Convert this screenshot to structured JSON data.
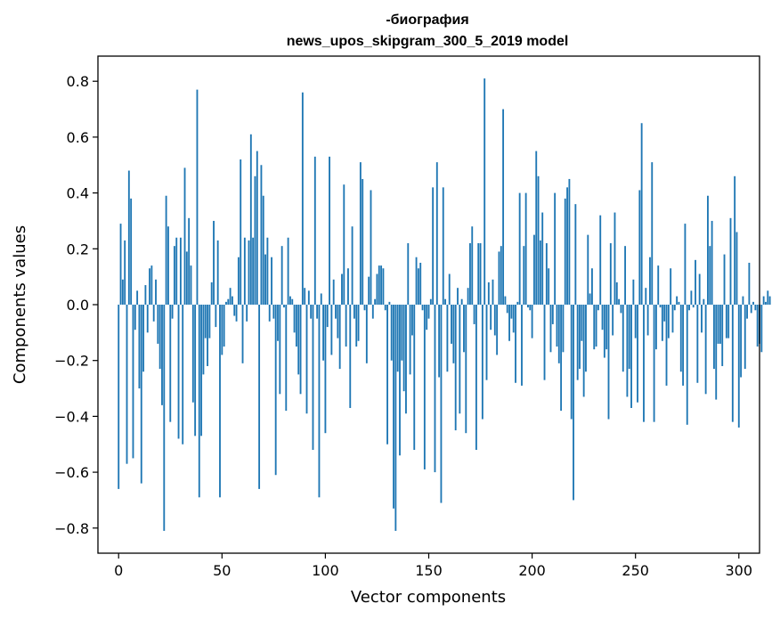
{
  "chart_data": {
    "type": "bar",
    "title_line1": "-биография",
    "title_line2": "news_upos_skipgram_300_5_2019 model",
    "xlabel": "Vector components",
    "ylabel": "Components values",
    "xlim": [
      -10,
      310
    ],
    "ylim": [
      -0.89,
      0.89
    ],
    "xticks": [
      0,
      50,
      100,
      150,
      200,
      250,
      300
    ],
    "xtick_labels": [
      "0",
      "50",
      "100",
      "150",
      "200",
      "250",
      "300"
    ],
    "yticks": [
      -0.8,
      -0.6,
      -0.4,
      -0.2,
      0.0,
      0.2,
      0.4,
      0.6,
      0.8
    ],
    "ytick_labels": [
      "−0.8",
      "−0.6",
      "−0.4",
      "−0.2",
      "0.0",
      "0.2",
      "0.4",
      "0.6",
      "0.8"
    ],
    "bar_color": "#1f77b4",
    "values": [
      -0.66,
      0.29,
      0.09,
      0.23,
      -0.57,
      0.48,
      0.38,
      -0.55,
      -0.09,
      0.05,
      -0.3,
      -0.64,
      -0.24,
      0.07,
      -0.1,
      0.13,
      0.14,
      -0.06,
      0.09,
      -0.14,
      -0.23,
      -0.36,
      -0.81,
      0.39,
      0.28,
      -0.42,
      -0.05,
      0.21,
      0.24,
      -0.48,
      0.24,
      -0.5,
      0.49,
      0.19,
      0.31,
      0.14,
      -0.35,
      -0.47,
      0.77,
      -0.69,
      -0.47,
      -0.25,
      -0.12,
      -0.22,
      -0.12,
      0.08,
      0.3,
      -0.08,
      0.23,
      -0.69,
      -0.18,
      -0.15,
      0.01,
      0.02,
      0.06,
      0.03,
      -0.04,
      -0.06,
      0.17,
      0.52,
      -0.21,
      0.24,
      -0.06,
      0.23,
      0.61,
      0.24,
      0.46,
      0.55,
      -0.66,
      0.5,
      0.39,
      0.18,
      0.24,
      -0.06,
      0.17,
      -0.05,
      -0.61,
      -0.13,
      -0.32,
      0.21,
      -0.01,
      -0.38,
      0.24,
      0.03,
      0.02,
      -0.1,
      -0.15,
      -0.25,
      -0.32,
      0.76,
      0.06,
      -0.39,
      0.05,
      -0.05,
      -0.52,
      0.53,
      -0.05,
      -0.69,
      0.04,
      -0.2,
      -0.46,
      -0.08,
      0.53,
      -0.18,
      0.09,
      -0.05,
      -0.12,
      -0.23,
      0.11,
      0.43,
      -0.15,
      0.13,
      -0.37,
      0.28,
      -0.05,
      -0.15,
      -0.13,
      0.51,
      0.45,
      -0.02,
      -0.21,
      0.1,
      0.41,
      -0.05,
      0.02,
      0.11,
      0.14,
      0.14,
      0.13,
      -0.02,
      -0.5,
      0.01,
      -0.2,
      -0.73,
      -0.81,
      -0.24,
      -0.54,
      -0.2,
      -0.31,
      -0.39,
      0.22,
      -0.25,
      -0.11,
      -0.52,
      0.17,
      0.13,
      0.15,
      -0.02,
      -0.59,
      -0.09,
      -0.05,
      0.02,
      0.42,
      -0.6,
      0.51,
      -0.26,
      -0.71,
      0.42,
      0.02,
      -0.24,
      0.11,
      -0.14,
      -0.21,
      -0.45,
      0.06,
      -0.39,
      0.02,
      -0.17,
      -0.46,
      0.06,
      0.22,
      0.28,
      -0.07,
      -0.52,
      0.22,
      0.22,
      -0.41,
      0.81,
      -0.27,
      0.08,
      -0.09,
      0.09,
      -0.11,
      -0.18,
      0.19,
      0.21,
      0.7,
      0.03,
      -0.03,
      -0.13,
      -0.05,
      -0.1,
      -0.28,
      0.01,
      0.4,
      -0.29,
      0.21,
      0.4,
      -0.01,
      -0.02,
      -0.12,
      0.25,
      0.55,
      0.46,
      0.23,
      0.33,
      -0.27,
      0.22,
      0.13,
      -0.17,
      -0.07,
      0.4,
      -0.15,
      -0.21,
      -0.38,
      -0.17,
      0.38,
      0.42,
      0.45,
      -0.41,
      -0.7,
      0.36,
      -0.27,
      -0.23,
      -0.13,
      -0.33,
      -0.24,
      0.25,
      0.04,
      0.13,
      -0.16,
      -0.15,
      -0.02,
      0.32,
      -0.09,
      -0.19,
      -0.16,
      -0.41,
      0.22,
      -0.11,
      0.33,
      0.08,
      0.02,
      -0.03,
      -0.24,
      0.21,
      -0.33,
      -0.23,
      -0.37,
      0.09,
      -0.12,
      -0.35,
      0.41,
      0.65,
      -0.42,
      0.06,
      -0.11,
      0.17,
      0.51,
      -0.42,
      -0.16,
      0.14,
      -0.01,
      -0.13,
      -0.06,
      -0.29,
      -0.12,
      0.13,
      -0.1,
      -0.02,
      0.03,
      0.01,
      -0.24,
      -0.29,
      0.29,
      -0.43,
      -0.02,
      0.05,
      -0.01,
      0.16,
      -0.28,
      0.11,
      -0.1,
      0.02,
      -0.32,
      0.39,
      0.21,
      0.3,
      -0.23,
      -0.34,
      -0.14,
      -0.14,
      -0.22,
      0.18,
      -0.12,
      -0.12,
      0.31,
      -0.42,
      0.46,
      0.26,
      -0.44,
      -0.26,
      0.03,
      -0.23,
      -0.05,
      0.15,
      -0.03,
      0.01,
      -0.02,
      -0.15,
      -0.14,
      -0.17,
      0.03,
      0.01,
      0.05,
      0.03
    ]
  }
}
